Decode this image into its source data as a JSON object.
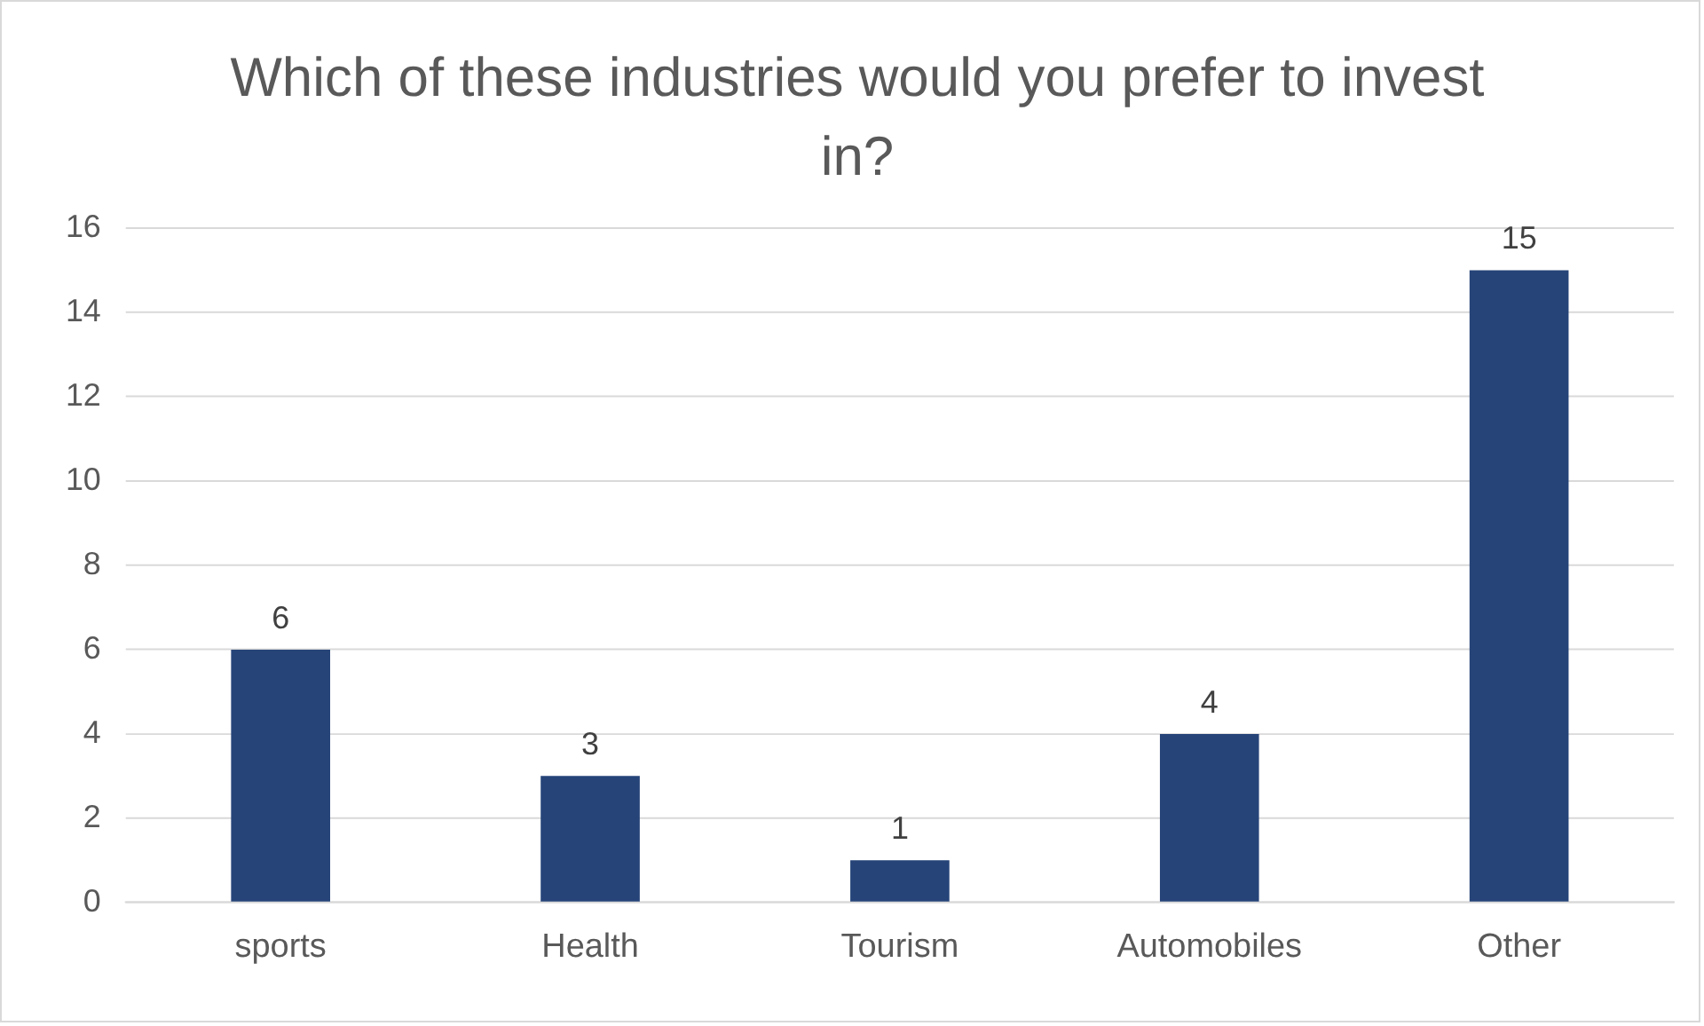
{
  "chart_data": {
    "type": "bar",
    "title": "Which of these industries would you prefer to invest in?",
    "categories": [
      "sports",
      "Health",
      "Tourism",
      "Automobiles",
      "Other"
    ],
    "values": [
      6,
      3,
      1,
      4,
      15
    ],
    "color": "#264478",
    "ylim": [
      0,
      16
    ],
    "yticks": [
      0,
      2,
      4,
      6,
      8,
      10,
      12,
      14,
      16
    ],
    "grid": "y",
    "data_labels": true,
    "legend": false
  }
}
